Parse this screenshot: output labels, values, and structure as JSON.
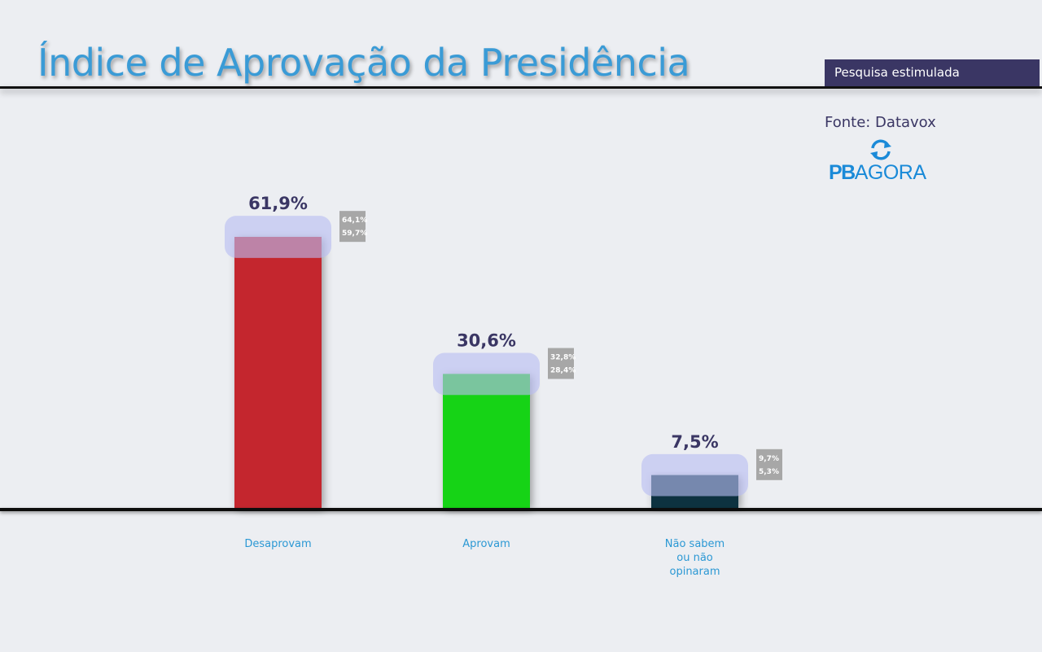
{
  "header": {
    "title": "Índice de Aprovação da Presidência",
    "badge": "Pesquisa estimulada",
    "source": "Fonte: Datavox",
    "logo_pb": "PB",
    "logo_agora": "AGORA",
    "logo_icon": "refresh-arrows-icon"
  },
  "chart_data": {
    "type": "bar",
    "title": "Índice de Aprovação da Presidência",
    "categories": [
      "Desaprovam",
      "Aprovam",
      "Não sabem ou não opinaram"
    ],
    "category_lines": [
      [
        "Desaprovam"
      ],
      [
        "Aprovam"
      ],
      [
        "Não sabem",
        "ou não",
        "opinaram"
      ]
    ],
    "values": [
      61.9,
      30.6,
      7.5
    ],
    "value_labels": [
      "61,9%",
      "30,6%",
      "7,5%"
    ],
    "upper": [
      64.1,
      32.8,
      9.7
    ],
    "lower": [
      59.7,
      28.4,
      5.3
    ],
    "upper_labels": [
      "64,1%",
      "32,8%",
      "9,7%"
    ],
    "lower_labels": [
      "59,7%",
      "28,4%",
      "5,3%"
    ],
    "colors": [
      "#c4262e",
      "#12d312",
      "#07303f"
    ],
    "ylim": [
      0,
      100
    ],
    "grid": false,
    "legend": "none"
  }
}
